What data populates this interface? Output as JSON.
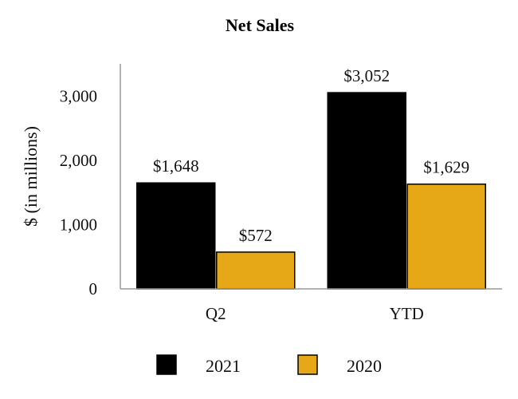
{
  "chart_data": {
    "type": "bar",
    "title": "Net Sales",
    "ylabel": "$ (in millions)",
    "xlabel": "",
    "categories": [
      "Q2",
      "YTD"
    ],
    "ylim": [
      0,
      3500
    ],
    "yticks": [
      0,
      1000,
      2000,
      3000
    ],
    "ytick_labels": [
      "0",
      "1,000",
      "2,000",
      "3,000"
    ],
    "series": [
      {
        "name": "2021",
        "color": "#000000",
        "values": [
          1648,
          3052
        ],
        "labels": [
          "$1,648",
          "$3,052"
        ]
      },
      {
        "name": "2020",
        "color": "#E6A817",
        "values": [
          572,
          1629
        ],
        "labels": [
          "$572",
          "$1,629"
        ]
      }
    ],
    "legend_position": "bottom",
    "grid": false
  }
}
